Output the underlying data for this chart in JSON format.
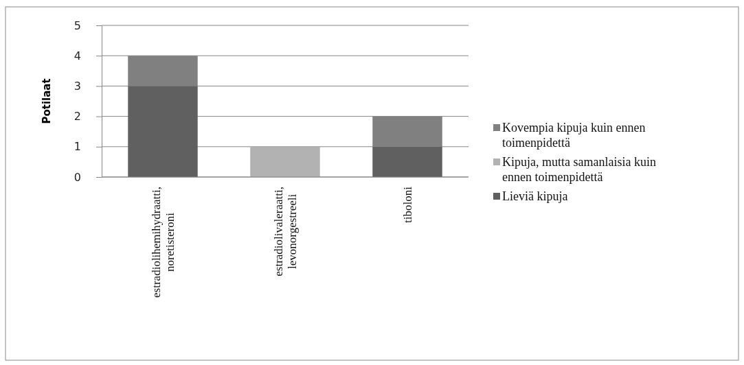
{
  "chart_data": {
    "type": "bar",
    "stacked": true,
    "ylabel": "Potilaat",
    "categories": [
      "estradiolihemihydraatti, noretisteroni",
      "estradiolivaleraatti, levonorgestreeli",
      "tiboloni"
    ],
    "series": [
      {
        "name": "Lieviä kipuja",
        "color": "#606060",
        "values": [
          3,
          0,
          1
        ]
      },
      {
        "name": "Kipuja, mutta samanlaisia kuin ennen toimenpidettä",
        "color": "#b2b2b2",
        "values": [
          0,
          1,
          0
        ]
      },
      {
        "name": "Kovempia kipuja kuin ennen toimenpidettä",
        "color": "#808080",
        "values": [
          1,
          0,
          1
        ]
      }
    ],
    "ylim": [
      0,
      5
    ],
    "yticks": [
      0,
      1,
      2,
      3,
      4,
      5
    ],
    "grid": "y",
    "legend": "right"
  }
}
